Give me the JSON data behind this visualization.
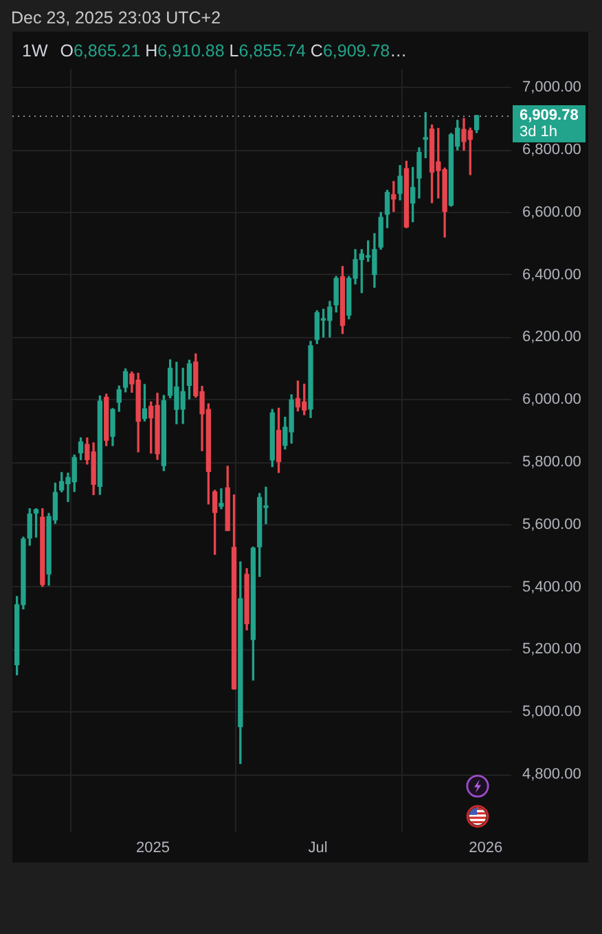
{
  "chart_data": {
    "type": "candlestick",
    "title": "1W",
    "subtitle": "O6,865.21 H6,910.88 L6,855.74 C6,909.78…",
    "annotations": [
      "Dec 23, 2025 23:03 UTC+2"
    ],
    "x": [
      "2024-08-05",
      "2024-08-12",
      "2024-08-19",
      "2024-08-26",
      "2024-09-02",
      "2024-09-09",
      "2024-09-16",
      "2024-09-23",
      "2024-09-30",
      "2024-10-07",
      "2024-10-14",
      "2024-10-21",
      "2024-10-28",
      "2024-11-04",
      "2024-11-11",
      "2024-11-18",
      "2024-11-25",
      "2024-12-02",
      "2024-12-09",
      "2024-12-16",
      "2024-12-23",
      "2024-12-30",
      "2025-01-06",
      "2025-01-13",
      "2025-01-20",
      "2025-01-27",
      "2025-02-03",
      "2025-02-10",
      "2025-02-17",
      "2025-02-24",
      "2025-03-03",
      "2025-03-10",
      "2025-03-17",
      "2025-03-24",
      "2025-03-31",
      "2025-04-07",
      "2025-04-14",
      "2025-04-21",
      "2025-04-28",
      "2025-05-05",
      "2025-05-12",
      "2025-05-19",
      "2025-05-26",
      "2025-06-02",
      "2025-06-09",
      "2025-06-16",
      "2025-06-23",
      "2025-06-30",
      "2025-07-07",
      "2025-07-14",
      "2025-07-21",
      "2025-07-28",
      "2025-08-04",
      "2025-08-11",
      "2025-08-18",
      "2025-08-25",
      "2025-09-01",
      "2025-09-08",
      "2025-09-15",
      "2025-09-22",
      "2025-09-29",
      "2025-10-06",
      "2025-10-13",
      "2025-10-20",
      "2025-10-27",
      "2025-11-03",
      "2025-11-10",
      "2025-11-17",
      "2025-11-24",
      "2025-12-01",
      "2025-12-08",
      "2025-12-15",
      "2025-12-22"
    ],
    "ohlc": [
      [
        5151,
        5370,
        5119,
        5344
      ],
      [
        5344,
        5560,
        5330,
        5554
      ],
      [
        5557,
        5651,
        5534,
        5634
      ],
      [
        5637,
        5651,
        5560,
        5648
      ],
      [
        5624,
        5651,
        5402,
        5408
      ],
      [
        5442,
        5636,
        5406,
        5626
      ],
      [
        5615,
        5733,
        5604,
        5703
      ],
      [
        5711,
        5767,
        5705,
        5738
      ],
      [
        5731,
        5765,
        5674,
        5751
      ],
      [
        5737,
        5823,
        5706,
        5815
      ],
      [
        5830,
        5878,
        5808,
        5865
      ],
      [
        5857,
        5878,
        5794,
        5808
      ],
      [
        5833,
        5862,
        5696,
        5729
      ],
      [
        5722,
        6012,
        5697,
        5996
      ],
      [
        6008,
        6018,
        5853,
        5870
      ],
      [
        5883,
        5972,
        5853,
        5969
      ],
      [
        5992,
        6044,
        5963,
        6032
      ],
      [
        6040,
        6099,
        6025,
        6090
      ],
      [
        6083,
        6089,
        6024,
        6051
      ],
      [
        6063,
        6085,
        5833,
        5931
      ],
      [
        5940,
        6049,
        5932,
        5971
      ],
      [
        5979,
        5993,
        5829,
        5942
      ],
      [
        5982,
        6021,
        5809,
        5827
      ],
      [
        5789,
        6014,
        5773,
        5997
      ],
      [
        6014,
        6128,
        6006,
        6101
      ],
      [
        5969,
        6120,
        5923,
        6041
      ],
      [
        5970,
        6101,
        5924,
        6026
      ],
      [
        6046,
        6127,
        6003,
        6115
      ],
      [
        6121,
        6147,
        6008,
        6013
      ],
      [
        6026,
        6043,
        5837,
        5955
      ],
      [
        5969,
        5987,
        5666,
        5770
      ],
      [
        5705,
        5710,
        5505,
        5639
      ],
      [
        5659,
        5715,
        5651,
        5668
      ],
      [
        5718,
        5787,
        5581,
        5581
      ],
      [
        5527,
        5695,
        5073,
        5074
      ],
      [
        4953,
        5481,
        4835,
        5363
      ],
      [
        5441,
        5459,
        5263,
        5283
      ],
      [
        5232,
        5528,
        5102,
        5525
      ],
      [
        5529,
        5700,
        5434,
        5687
      ],
      [
        5655,
        5720,
        5603,
        5660
      ],
      [
        5807,
        5969,
        5786,
        5958
      ],
      [
        5902,
        5973,
        5767,
        5802
      ],
      [
        5854,
        5944,
        5842,
        5912
      ],
      [
        5897,
        6016,
        5861,
        6000
      ],
      [
        6004,
        6060,
        5964,
        5977
      ],
      [
        5993,
        6050,
        5952,
        5967
      ],
      [
        5970,
        6187,
        5943,
        6173
      ],
      [
        6193,
        6285,
        6180,
        6279
      ],
      [
        6255,
        6290,
        6201,
        6260
      ],
      [
        6254,
        6315,
        6201,
        6297
      ],
      [
        6304,
        6395,
        6281,
        6389
      ],
      [
        6394,
        6427,
        6212,
        6238
      ],
      [
        6271,
        6395,
        6259,
        6389
      ],
      [
        6389,
        6481,
        6371,
        6449
      ],
      [
        6449,
        6481,
        6343,
        6467
      ],
      [
        6457,
        6509,
        6443,
        6460
      ],
      [
        6401,
        6532,
        6360,
        6481
      ],
      [
        6489,
        6600,
        6482,
        6584
      ],
      [
        6594,
        6671,
        6551,
        6664
      ],
      [
        6657,
        6699,
        6603,
        6643
      ],
      [
        6661,
        6750,
        6640,
        6716
      ],
      [
        6740,
        6764,
        6551,
        6553
      ],
      [
        6630,
        6744,
        6570,
        6680
      ],
      [
        6710,
        6807,
        6646,
        6792
      ],
      [
        6834,
        6920,
        6775,
        6840
      ],
      [
        6867,
        6880,
        6631,
        6729
      ],
      [
        6762,
        6869,
        6646,
        6734
      ],
      [
        6737,
        6742,
        6521,
        6603
      ],
      [
        6623,
        6853,
        6620,
        6849
      ],
      [
        6812,
        6895,
        6800,
        6870
      ],
      [
        6866,
        6901,
        6799,
        6827
      ],
      [
        6862,
        6870,
        6721,
        6834
      ],
      [
        6865.21,
        6910.88,
        6855.74,
        6909.78
      ]
    ],
    "colors": [
      "#22a38b",
      "#22a38b",
      "#22a38b",
      "#22a38b",
      "#e8454e",
      "#22a38b",
      "#22a38b",
      "#22a38b",
      "#22a38b",
      "#22a38b",
      "#22a38b",
      "#e8454e",
      "#e8454e",
      "#22a38b",
      "#e8454e",
      "#22a38b",
      "#22a38b",
      "#22a38b",
      "#e8454e",
      "#e8454e",
      "#22a38b",
      "#e8454e",
      "#e8454e",
      "#22a38b",
      "#22a38b",
      "#22a38b",
      "#22a38b",
      "#22a38b",
      "#e8454e",
      "#e8454e",
      "#e8454e",
      "#e8454e",
      "#22a38b",
      "#e8454e",
      "#e8454e",
      "#22a38b",
      "#e8454e",
      "#22a38b",
      "#22a38b",
      "#22a38b",
      "#22a38b",
      "#e8454e",
      "#22a38b",
      "#22a38b",
      "#e8454e",
      "#e8454e",
      "#22a38b",
      "#22a38b",
      "#22a38b",
      "#22a38b",
      "#22a38b",
      "#e8454e",
      "#22a38b",
      "#22a38b",
      "#22a38b",
      "#22a38b",
      "#22a38b",
      "#22a38b",
      "#22a38b",
      "#e8454e",
      "#22a38b",
      "#e8454e",
      "#22a38b",
      "#22a38b",
      "#22a38b",
      "#e8454e",
      "#e8454e",
      "#e8454e",
      "#22a38b",
      "#22a38b",
      "#e8454e",
      "#e8454e",
      "#22a38b"
    ],
    "xlim": [
      "2024-07-31",
      "2026-01-29"
    ],
    "xticks": [
      {
        "value": "2025-01-01",
        "label": "2025"
      },
      {
        "value": "2025-07-01",
        "label": "Jul"
      },
      {
        "value": "2026-01-01",
        "label": "2026"
      }
    ],
    "ylim": [
      4615,
      7060
    ],
    "yticks": [
      {
        "value": 4800,
        "label": "4,800.00"
      },
      {
        "value": 5000,
        "label": "5,000.00"
      },
      {
        "value": 5200,
        "label": "5,200.00"
      },
      {
        "value": 5400,
        "label": "5,400.00"
      },
      {
        "value": 5600,
        "label": "5,600.00"
      },
      {
        "value": 5800,
        "label": "5,800.00"
      },
      {
        "value": 6000,
        "label": "6,000.00"
      },
      {
        "value": 6200,
        "label": "6,200.00"
      },
      {
        "value": 6400,
        "label": "6,400.00"
      },
      {
        "value": 6600,
        "label": "6,600.00"
      },
      {
        "value": 6800,
        "label": "6,800.00"
      },
      {
        "value": 7000,
        "label": "7,000.00"
      }
    ],
    "grid": true,
    "ref_lines": [
      {
        "axis": "y",
        "value": 6909.78,
        "label": "6,909.78\n3d 1h",
        "color": "#8a8d94",
        "line_style": "dotted"
      }
    ]
  }
}
